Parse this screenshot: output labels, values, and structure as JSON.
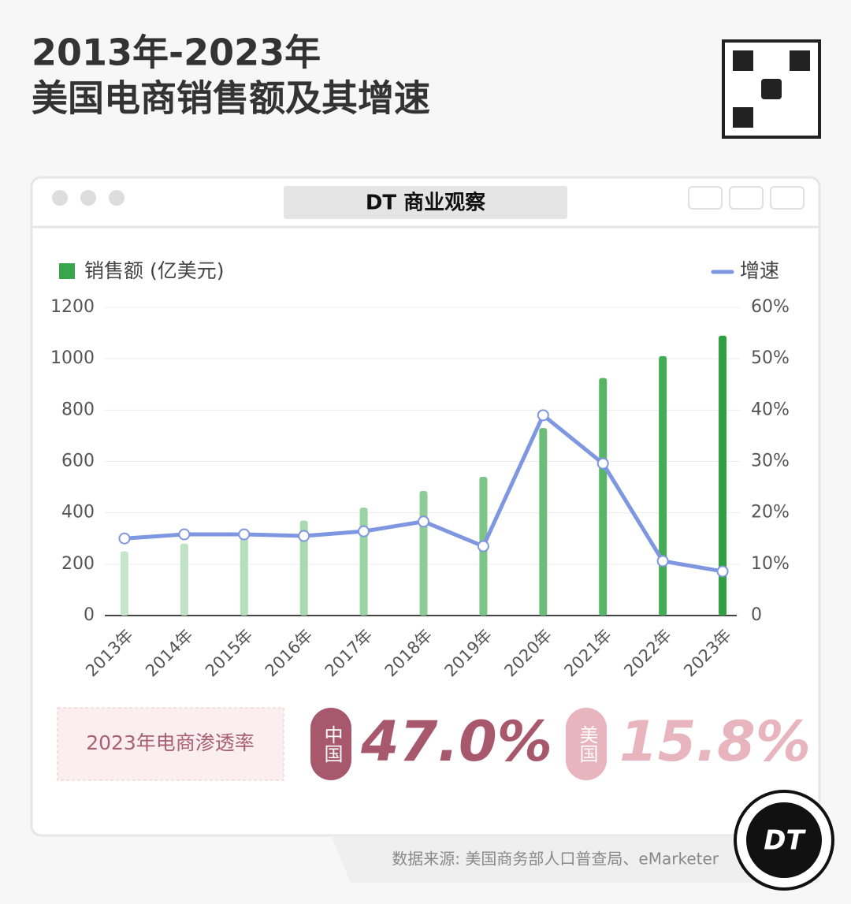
{
  "chart_data": {
    "type": "bar-line",
    "title": [
      "2013年-2023年",
      "美国电商销售额及其增速"
    ],
    "categories": [
      "2013年",
      "2014年",
      "2015年",
      "2016年",
      "2017年",
      "2018年",
      "2019年",
      "2020年",
      "2021年",
      "2022年",
      "2023年"
    ],
    "series": [
      {
        "name": "销售额 (亿美元)",
        "type": "bar",
        "color": "#3aa64c",
        "colors": [
          "#c5e6c8",
          "#bfe3c3",
          "#b6dfbb",
          "#a9d9b0",
          "#9cd3a4",
          "#8dcc97",
          "#7cc487",
          "#6cbd79",
          "#58b467",
          "#45ab56",
          "#2f9f42"
        ],
        "values": [
          250,
          280,
          310,
          370,
          420,
          485,
          540,
          730,
          925,
          1010,
          1090
        ]
      },
      {
        "name": "增速",
        "type": "line",
        "axis": "y2",
        "color": "#7f96e0",
        "values": [
          15.0,
          15.8,
          15.8,
          15.5,
          16.4,
          18.3,
          13.5,
          39.0,
          29.6,
          10.6,
          8.6
        ]
      }
    ],
    "ylim": [
      0,
      1200
    ],
    "yticks": [
      0,
      200,
      400,
      600,
      800,
      1000,
      1200
    ],
    "y2lim": [
      0,
      60
    ],
    "y2ticks": [
      {
        "value": 0,
        "label": "0"
      },
      {
        "value": 10,
        "label": "10%"
      },
      {
        "value": 20,
        "label": "20%"
      },
      {
        "value": 30,
        "label": "30%"
      },
      {
        "value": 40,
        "label": "40%"
      },
      {
        "value": 50,
        "label": "50%"
      },
      {
        "value": 60,
        "label": "60%"
      }
    ],
    "grid": true
  },
  "window_title": "DT 商业观察",
  "penetration": {
    "label": "2023年电商渗透率",
    "items": [
      {
        "country": "中国",
        "value": "47.0%"
      },
      {
        "country": "美国",
        "value": "15.8%"
      }
    ]
  },
  "source": "数据来源: 美国商务部人口普查局、eMarketer",
  "logo": "DT"
}
